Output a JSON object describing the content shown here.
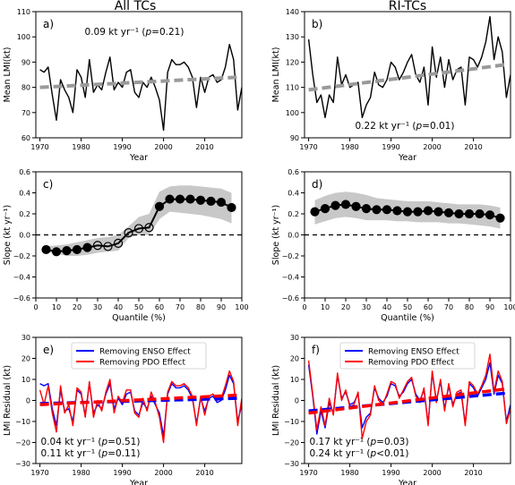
{
  "figure": {
    "column_titles": [
      "All TCs",
      "RI-TCs"
    ]
  },
  "chart_data": [
    {
      "id": "a",
      "type": "line",
      "panel_label": "a)",
      "xlabel": "Year",
      "ylabel": "Mean LMI(kt)",
      "xlim": [
        1969,
        2019
      ],
      "ylim": [
        60,
        110
      ],
      "xticks": [
        1970,
        1980,
        1990,
        2000,
        2010
      ],
      "yticks": [
        60,
        70,
        80,
        90,
        100,
        110
      ],
      "x_start": 1970,
      "annotation": "0.09 kt yr⁻¹ (p=0.21)",
      "annotation_color": "#000000",
      "series": [
        {
          "values": [
            87,
            86,
            88,
            77,
            67,
            83,
            79,
            76,
            70,
            87,
            84,
            76,
            91,
            78,
            81,
            79,
            86,
            92,
            79,
            82,
            80,
            86,
            87,
            78,
            76,
            82,
            80,
            84,
            80,
            75,
            63,
            86,
            91,
            89,
            89,
            90,
            88,
            84,
            72,
            84,
            78,
            84,
            85,
            82,
            83,
            88,
            97,
            91,
            71,
            80
          ],
          "color": "#000000",
          "width": 1.4
        },
        {
          "values": [
            80,
            84
          ],
          "x": [
            1970,
            2018
          ],
          "color": "#9a9a9a",
          "width": 4,
          "dash": "10,5"
        }
      ]
    },
    {
      "id": "b",
      "type": "line",
      "panel_label": "b)",
      "xlabel": "Year",
      "ylabel": "Mean LMI(kt)",
      "xlim": [
        1969,
        2019
      ],
      "ylim": [
        90,
        140
      ],
      "xticks": [
        1970,
        1980,
        1990,
        2000,
        2010
      ],
      "yticks": [
        90,
        100,
        110,
        120,
        130,
        140
      ],
      "x_start": 1970,
      "annotation": "0.22 kt yr⁻¹ (p=0.01)",
      "annotation_color": "#000000",
      "series": [
        {
          "values": [
            129,
            115,
            104,
            107,
            98,
            107,
            104,
            122,
            111,
            115,
            110,
            111,
            112,
            98,
            103,
            106,
            116,
            111,
            110,
            113,
            120,
            118,
            113,
            116,
            120,
            123,
            115,
            112,
            118,
            103,
            126,
            114,
            122,
            110,
            121,
            113,
            117,
            118,
            103,
            122,
            121,
            118,
            122,
            128,
            138,
            121,
            130,
            124,
            106,
            115
          ],
          "color": "#000000",
          "width": 1.4
        },
        {
          "values": [
            109,
            119
          ],
          "x": [
            1970,
            2018
          ],
          "color": "#9a9a9a",
          "width": 4,
          "dash": "10,5"
        }
      ]
    },
    {
      "id": "c",
      "type": "line",
      "panel_label": "c)",
      "xlabel": "Quantile (%)",
      "ylabel": "Slope (kt yr⁻¹)",
      "xlim": [
        0,
        100
      ],
      "ylim": [
        -0.6,
        0.6
      ],
      "xticks": [
        0,
        10,
        20,
        30,
        40,
        50,
        60,
        70,
        80,
        90,
        100
      ],
      "yticks": [
        -0.6,
        -0.4,
        -0.2,
        0.0,
        0.2,
        0.4,
        0.6
      ],
      "x": [
        5,
        10,
        15,
        20,
        25,
        30,
        35,
        40,
        45,
        50,
        55,
        60,
        65,
        70,
        75,
        80,
        85,
        90,
        95
      ],
      "values": [
        -0.14,
        -0.16,
        -0.15,
        -0.14,
        -0.12,
        -0.1,
        -0.11,
        -0.08,
        0.02,
        0.06,
        0.07,
        0.27,
        0.34,
        0.34,
        0.34,
        0.33,
        0.32,
        0.31,
        0.26
      ],
      "open_markers": [
        false,
        false,
        false,
        false,
        false,
        true,
        true,
        true,
        true,
        true,
        true,
        false,
        false,
        false,
        false,
        false,
        false,
        false,
        false
      ],
      "band_upper": [
        -0.11,
        -0.1,
        -0.09,
        -0.07,
        -0.05,
        -0.03,
        -0.02,
        0.0,
        0.08,
        0.17,
        0.2,
        0.41,
        0.46,
        0.47,
        0.47,
        0.46,
        0.45,
        0.44,
        0.4
      ],
      "band_lower": [
        -0.16,
        -0.18,
        -0.2,
        -0.2,
        -0.19,
        -0.17,
        -0.16,
        -0.15,
        -0.03,
        0.0,
        0.0,
        0.15,
        0.22,
        0.21,
        0.2,
        0.19,
        0.17,
        0.15,
        0.11
      ],
      "zero_line": true
    },
    {
      "id": "d",
      "type": "line",
      "panel_label": "d)",
      "xlabel": "Quantile (%)",
      "ylabel": "Slope (kt yr⁻¹)",
      "xlim": [
        0,
        100
      ],
      "ylim": [
        -0.6,
        0.6
      ],
      "xticks": [
        0,
        10,
        20,
        30,
        40,
        50,
        60,
        70,
        80,
        90,
        100
      ],
      "yticks": [
        -0.6,
        -0.4,
        -0.2,
        0.0,
        0.2,
        0.4,
        0.6
      ],
      "x": [
        5,
        10,
        15,
        20,
        25,
        30,
        35,
        40,
        45,
        50,
        55,
        60,
        65,
        70,
        75,
        80,
        85,
        90,
        95
      ],
      "values": [
        0.22,
        0.25,
        0.28,
        0.29,
        0.27,
        0.25,
        0.24,
        0.24,
        0.23,
        0.22,
        0.22,
        0.23,
        0.22,
        0.21,
        0.2,
        0.2,
        0.2,
        0.19,
        0.16
      ],
      "open_markers": [
        false,
        false,
        false,
        false,
        false,
        false,
        false,
        false,
        false,
        false,
        false,
        false,
        false,
        false,
        false,
        false,
        false,
        false,
        false
      ],
      "band_upper": [
        0.33,
        0.37,
        0.4,
        0.41,
        0.4,
        0.38,
        0.35,
        0.34,
        0.33,
        0.32,
        0.32,
        0.32,
        0.31,
        0.3,
        0.29,
        0.29,
        0.29,
        0.28,
        0.26
      ],
      "band_lower": [
        0.1,
        0.13,
        0.16,
        0.17,
        0.16,
        0.14,
        0.14,
        0.14,
        0.13,
        0.13,
        0.12,
        0.12,
        0.12,
        0.11,
        0.11,
        0.1,
        0.09,
        0.08,
        0.06
      ],
      "zero_line": true
    },
    {
      "id": "e",
      "type": "line",
      "panel_label": "e)",
      "xlabel": "Year",
      "ylabel": "LMI Residual (kt)",
      "xlim": [
        1969,
        2019
      ],
      "ylim": [
        -30,
        30
      ],
      "xticks": [
        1970,
        1980,
        1990,
        2000,
        2010
      ],
      "yticks": [
        -30,
        -20,
        -10,
        0,
        10,
        20,
        30
      ],
      "x_start": 1970,
      "legend": [
        {
          "label": "Removing ENSO Effect",
          "color": "#0000ff"
        },
        {
          "label": "Removing PDO Effect",
          "color": "#ff0000"
        }
      ],
      "annotations": [
        {
          "text": "0.04 kt yr⁻¹ (p=0.51)",
          "color": "#0000ff"
        },
        {
          "text": "0.11 kt yr⁻¹ (p=0.11)",
          "color": "#ff0000"
        }
      ],
      "series": [
        {
          "name": "Removing ENSO Effect",
          "values": [
            8,
            7,
            8,
            -4,
            -12,
            5,
            -5,
            -4,
            -10,
            5,
            3,
            -7,
            8,
            -6,
            -2,
            -4,
            3,
            8,
            -4,
            1,
            -2,
            3,
            4,
            -5,
            -7,
            -1,
            -4,
            2,
            -2,
            -6,
            -17,
            3,
            8,
            6,
            6,
            7,
            5,
            1,
            -11,
            1,
            -5,
            1,
            2,
            -1,
            0,
            5,
            12,
            8,
            -10,
            -2
          ],
          "color": "#0000ff",
          "width": 1.4
        },
        {
          "name": "Removing PDO Effect",
          "values": [
            5,
            -2,
            7,
            -6,
            -15,
            7,
            -6,
            -2,
            -12,
            6,
            4,
            -8,
            9,
            -8,
            0,
            -5,
            4,
            10,
            -6,
            2,
            -1,
            5,
            5,
            -6,
            -8,
            1,
            -5,
            4,
            -1,
            -8,
            -20,
            4,
            9,
            7,
            7,
            8,
            6,
            2,
            -12,
            2,
            -7,
            2,
            3,
            0,
            1,
            7,
            14,
            9,
            -12,
            1
          ],
          "color": "#ff0000",
          "width": 1.4
        },
        {
          "values": [
            -1.5,
            1.0
          ],
          "x": [
            1970,
            2018
          ],
          "color": "#0000ff",
          "width": 3.5,
          "dash": "10,5"
        },
        {
          "values": [
            -2.0,
            2.5
          ],
          "x": [
            1970,
            2018
          ],
          "color": "#ff0000",
          "width": 3.5,
          "dash": "10,5"
        }
      ]
    },
    {
      "id": "f",
      "type": "line",
      "panel_label": "f)",
      "xlabel": "Year",
      "ylabel": "LMI Residual (kt)",
      "xlim": [
        1969,
        2019
      ],
      "ylim": [
        -30,
        30
      ],
      "xticks": [
        1970,
        1980,
        1990,
        2000,
        2010
      ],
      "yticks": [
        -30,
        -20,
        -10,
        0,
        10,
        20,
        30
      ],
      "x_start": 1970,
      "legend": [
        {
          "label": "Removing ENSO Effect",
          "color": "#0000ff"
        },
        {
          "label": "Removing PDO Effect",
          "color": "#ff0000"
        }
      ],
      "annotations": [
        {
          "text": "0.17 kt yr⁻¹ (p=0.03)",
          "color": "#0000ff"
        },
        {
          "text": "0.24 kt yr⁻¹ (p<0.01)",
          "color": "#ff0000"
        }
      ],
      "series": [
        {
          "name": "Removing ENSO Effect",
          "values": [
            17,
            2,
            -16,
            -5,
            -13,
            -1,
            -6,
            12,
            1,
            4,
            -2,
            -1,
            3,
            -13,
            -8,
            -6,
            6,
            1,
            -1,
            2,
            8,
            7,
            2,
            4,
            8,
            10,
            3,
            0,
            5,
            -11,
            13,
            0,
            9,
            -4,
            7,
            -2,
            3,
            4,
            -11,
            8,
            6,
            2,
            6,
            10,
            18,
            3,
            12,
            8,
            -10,
            -2
          ],
          "color": "#0000ff",
          "width": 1.4
        },
        {
          "name": "Removing PDO Effect",
          "values": [
            19,
            3,
            -14,
            -3,
            -12,
            1,
            -7,
            13,
            0,
            5,
            -3,
            -2,
            4,
            -18,
            -10,
            -7,
            7,
            0,
            -2,
            3,
            9,
            8,
            1,
            5,
            9,
            11,
            2,
            -1,
            6,
            -12,
            14,
            -1,
            10,
            -5,
            8,
            -3,
            4,
            5,
            -12,
            9,
            7,
            3,
            7,
            12,
            22,
            4,
            14,
            9,
            -11,
            -4
          ],
          "color": "#ff0000",
          "width": 1.4
        },
        {
          "values": [
            -5.0,
            3.5
          ],
          "x": [
            1970,
            2018
          ],
          "color": "#0000ff",
          "width": 3.5,
          "dash": "10,5"
        },
        {
          "values": [
            -6.0,
            5.5
          ],
          "x": [
            1970,
            2018
          ],
          "color": "#ff0000",
          "width": 3.5,
          "dash": "10,5"
        }
      ]
    }
  ]
}
